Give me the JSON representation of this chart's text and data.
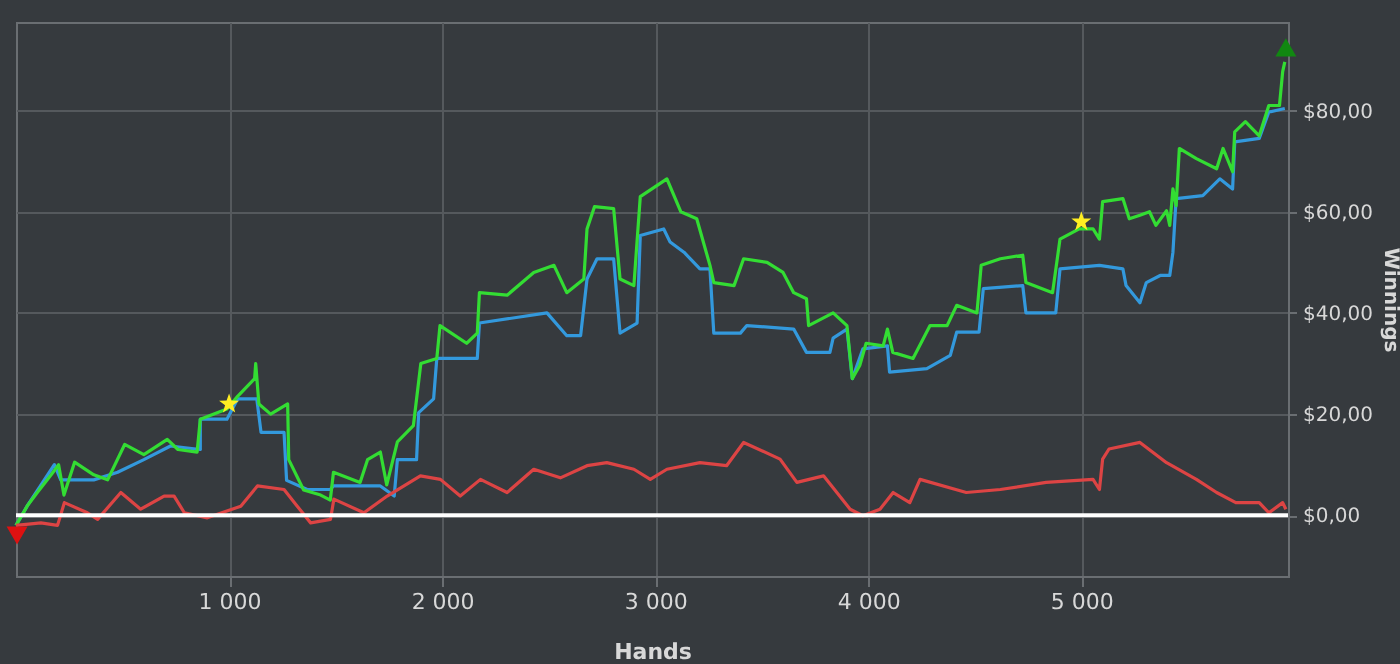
{
  "chart_data": {
    "type": "line",
    "xlabel": "Hands",
    "ylabel": "Winnings",
    "xlim": [
      0,
      5970
    ],
    "ylim": [
      -12,
      97.5
    ],
    "xticks": [
      {
        "value": 1000,
        "label": "1 000"
      },
      {
        "value": 2000,
        "label": "2 000"
      },
      {
        "value": 3000,
        "label": "3 000"
      },
      {
        "value": 4000,
        "label": "4 000"
      },
      {
        "value": 5000,
        "label": "5 000"
      }
    ],
    "yticks": [
      {
        "value": 0,
        "label": "$0,00"
      },
      {
        "value": 20,
        "label": "$20,00"
      },
      {
        "value": 40,
        "label": "$40,00"
      },
      {
        "value": 60,
        "label": "$60,00"
      },
      {
        "value": 80,
        "label": "$80,00"
      }
    ],
    "grid": true,
    "marker": "none",
    "line_style": "solid",
    "ref_lines": [
      {
        "axis": "y",
        "value": 0,
        "label": null,
        "color": "#ffffff"
      }
    ],
    "series": [
      {
        "color": "#3399dd",
        "x": [
          0,
          55,
          180,
          210,
          365,
          477,
          600,
          725,
          865,
          865,
          990,
          1040,
          1130,
          1150,
          1258,
          1270,
          1367,
          1475,
          1490,
          1710,
          1775,
          1790,
          1880,
          1890,
          1960,
          1975,
          2165,
          2175,
          2492,
          2585,
          2650,
          2680,
          2727,
          2805,
          2835,
          2915,
          2930,
          3040,
          3070,
          3135,
          3210,
          3257,
          3275,
          3400,
          3430,
          3650,
          3710,
          3820,
          3835,
          3900,
          3925,
          3975,
          4090,
          4100,
          4275,
          4385,
          4415,
          4520,
          4540,
          4725,
          4740,
          4880,
          4900,
          5085,
          5195,
          5210,
          5275,
          5305,
          5370,
          5415,
          5430,
          5445,
          5570,
          5650,
          5710,
          5720,
          5835,
          5880,
          5955
        ],
        "values": [
          -2,
          2,
          10,
          7,
          7,
          8.5,
          11,
          13.7,
          13,
          19,
          19,
          23,
          23,
          16.4,
          16.4,
          6.9,
          5.1,
          5.1,
          5.8,
          5.8,
          3.8,
          11,
          11,
          20.3,
          23,
          31,
          31,
          38,
          40,
          35.5,
          35.5,
          46.7,
          50.7,
          50.7,
          36,
          38,
          55.3,
          56.6,
          54,
          52,
          48.7,
          48.7,
          36,
          36,
          37.5,
          36.8,
          32.2,
          32.2,
          35,
          36.8,
          27,
          32.9,
          33.5,
          28.3,
          29,
          31.6,
          36.2,
          36.2,
          44.8,
          45.4,
          40,
          40,
          48.7,
          49.4,
          48.7,
          45.4,
          42,
          46,
          47.4,
          47.4,
          52,
          62.6,
          63.2,
          66.5,
          64.5,
          73.8,
          74.5,
          79.7,
          80.4
        ]
      },
      {
        "color": "#33dd33",
        "x": [
          0,
          55,
          100,
          165,
          200,
          225,
          275,
          365,
          430,
          510,
          600,
          710,
          760,
          850,
          865,
          990,
          1040,
          1120,
          1125,
          1140,
          1195,
          1275,
          1280,
          1350,
          1430,
          1475,
          1490,
          1615,
          1650,
          1710,
          1740,
          1790,
          1865,
          1900,
          1975,
          1990,
          2115,
          2165,
          2175,
          2305,
          2430,
          2525,
          2585,
          2665,
          2680,
          2715,
          2805,
          2835,
          2900,
          2930,
          3055,
          3120,
          3195,
          3257,
          3275,
          3370,
          3415,
          3525,
          3600,
          3650,
          3710,
          3720,
          3835,
          3900,
          3925,
          3960,
          3990,
          4070,
          4090,
          4115,
          4210,
          4290,
          4370,
          4415,
          4510,
          4530,
          4620,
          4725,
          4740,
          4865,
          4900,
          4990,
          5055,
          5085,
          5100,
          5195,
          5225,
          5275,
          5320,
          5350,
          5400,
          5415,
          5430,
          5445,
          5460,
          5540,
          5635,
          5665,
          5710,
          5720,
          5770,
          5835,
          5880,
          5930,
          5945,
          5955
        ],
        "values": [
          -2,
          2,
          4.5,
          8,
          10,
          4,
          10.5,
          8,
          7,
          14,
          12,
          15,
          13,
          12.5,
          19,
          21,
          23.5,
          27,
          30,
          22,
          20,
          22,
          11,
          5,
          4,
          3,
          8.5,
          6.5,
          11,
          12.5,
          6,
          14.5,
          17.7,
          30,
          31,
          37.5,
          34,
          36,
          44,
          43.5,
          48,
          49.4,
          44,
          46.7,
          56.6,
          61,
          60.6,
          46.7,
          45.4,
          63,
          66.5,
          60,
          58.6,
          49.4,
          46,
          45.4,
          50.7,
          50,
          48,
          44,
          42.8,
          37.5,
          40,
          37.5,
          27,
          29.6,
          34,
          33.5,
          36.8,
          32.2,
          31,
          37.5,
          37.5,
          41.5,
          40,
          49.4,
          50.7,
          51.4,
          46,
          44,
          54.6,
          56.6,
          56.6,
          54.6,
          62,
          62.6,
          58.6,
          59.3,
          60,
          57.3,
          60.2,
          57.3,
          64.5,
          61.2,
          72.5,
          70.5,
          68.5,
          72.5,
          67.9,
          75.8,
          77.8,
          75,
          81,
          81,
          87.7,
          89.6
        ]
      },
      {
        "color": "#dd4444",
        "x": [
          0,
          117,
          195,
          227,
          335,
          383,
          492,
          585,
          695,
          742,
          790,
          898,
          1055,
          1133,
          1258,
          1320,
          1383,
          1476,
          1492,
          1633,
          1742,
          1898,
          1992,
          2085,
          2180,
          2305,
          2430,
          2555,
          2680,
          2773,
          2900,
          2977,
          3055,
          3210,
          3335,
          3415,
          3586,
          3665,
          3790,
          3915,
          3975,
          4055,
          4117,
          4195,
          4243,
          4460,
          4620,
          4835,
          5055,
          5085,
          5100,
          5130,
          5275,
          5400,
          5540,
          5635,
          5725,
          5835,
          5880,
          5945,
          5960
        ],
        "values": [
          -2,
          -1.5,
          -2,
          2.5,
          0.5,
          -0.8,
          4.5,
          1.2,
          3.8,
          3.8,
          0.5,
          -0.5,
          1.8,
          5.8,
          5.1,
          1.8,
          -1.5,
          -0.8,
          3.2,
          0.5,
          3.8,
          7.8,
          7.1,
          3.8,
          7.1,
          4.5,
          9.1,
          7.4,
          9.8,
          10.4,
          9.1,
          7.1,
          9.1,
          10.4,
          9.8,
          14.4,
          11.1,
          6.5,
          7.8,
          1.2,
          -0.1,
          1.2,
          4.5,
          2.5,
          7.1,
          4.5,
          5.1,
          6.5,
          7.1,
          5.1,
          11.1,
          13.1,
          14.4,
          10.4,
          7.1,
          4.5,
          2.5,
          2.5,
          0.5,
          2.5,
          1.2
        ]
      },
      {
        "type": "scatter",
        "marker": "star",
        "color": "#ffee22",
        "x": [
          1000,
          5000
        ],
        "values": [
          22,
          58
        ]
      },
      {
        "type": "scatter",
        "marker": "triangle-down",
        "color": "#dd1111",
        "x": [
          5
        ],
        "values": [
          -4
        ]
      },
      {
        "type": "scatter",
        "marker": "triangle",
        "color": "#118811",
        "x": [
          5960
        ],
        "values": [
          92.5
        ]
      }
    ]
  }
}
